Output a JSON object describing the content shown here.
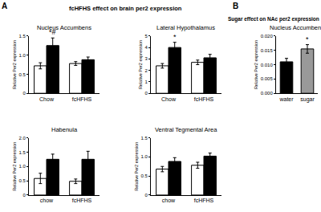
{
  "panels": [
    {
      "label": "A",
      "title": "fcHFHS effect on brain per2 expression"
    },
    {
      "label": "B",
      "title": "Sugar effect on NAc per2 expression"
    }
  ],
  "chart_data": [
    {
      "type": "bar",
      "title": "Nucleus Accumbens",
      "y_label": "Relative Per2 expression",
      "categories": [
        "Chow",
        "fcHFHS"
      ],
      "series": [
        {
          "color": "#ffffff",
          "values": [
            0.72,
            0.78
          ],
          "errors": [
            0.08,
            0.05
          ]
        },
        {
          "color": "#000000",
          "values": [
            1.25,
            0.88
          ],
          "errors": [
            0.2,
            0.07
          ]
        }
      ],
      "ylim": [
        0,
        1.5
      ],
      "yticks": [
        0,
        0.5,
        {
          "value": 1,
          "label": "1.0"
        },
        1.5
      ],
      "annotations": [
        {
          "text": "*#",
          "category": "Chow",
          "series": 1
        }
      ]
    },
    {
      "type": "bar",
      "title": "Lateral Hypothalamus",
      "y_label": "Relative Per2 expression",
      "categories": [
        "Chow",
        "fcHFHS"
      ],
      "series": [
        {
          "color": "#ffffff",
          "values": [
            2.4,
            2.7
          ],
          "errors": [
            0.2,
            0.2
          ]
        },
        {
          "color": "#000000",
          "values": [
            4.0,
            3.1
          ],
          "errors": [
            0.45,
            0.3
          ]
        }
      ],
      "ylim": [
        0,
        5
      ],
      "yticks": [
        0,
        1,
        2,
        3,
        4,
        5
      ],
      "annotations": [
        {
          "text": "*",
          "category": "Chow",
          "series": 1
        }
      ]
    },
    {
      "type": "bar",
      "title": "Habenula",
      "y_label": "Relative Per2 expression",
      "categories": [
        "chow",
        "fcHFHS"
      ],
      "series": [
        {
          "color": "#ffffff",
          "values": [
            0.58,
            0.48
          ],
          "errors": [
            0.18,
            0.08
          ]
        },
        {
          "color": "#000000",
          "values": [
            1.25,
            1.25
          ],
          "errors": [
            0.18,
            0.28
          ]
        }
      ],
      "ylim": [
        0,
        2
      ],
      "yticks": [
        0,
        0.5,
        {
          "value": 1,
          "label": "1.0"
        },
        1.5,
        {
          "value": 2,
          "label": "2.0"
        }
      ]
    },
    {
      "type": "bar",
      "title": "Ventral Tegmental Area",
      "y_label": "Relative Per2 expression",
      "categories": [
        "chow",
        "fcHFHS"
      ],
      "series": [
        {
          "color": "#ffffff",
          "values": [
            0.68,
            0.78
          ],
          "errors": [
            0.07,
            0.08
          ]
        },
        {
          "color": "#000000",
          "values": [
            0.88,
            1.02
          ],
          "errors": [
            0.1,
            0.08
          ]
        }
      ],
      "ylim": [
        0,
        1.5
      ],
      "yticks": [
        0,
        0.5,
        {
          "value": 1,
          "label": "1.0"
        },
        1.5
      ]
    },
    {
      "type": "bar",
      "title": "Nucleus Accumbens",
      "y_label": "Relative Per2 expression",
      "categories": [
        "water",
        "sugar"
      ],
      "values": [
        0.011,
        0.0155
      ],
      "errors": [
        0.0012,
        0.0015
      ],
      "colors": [
        "#000000",
        "#999999"
      ],
      "ylim": [
        0,
        0.02
      ],
      "yticks": [
        {
          "value": 0,
          "label": "0.000"
        },
        {
          "value": 0.005,
          "label": "0.005"
        },
        {
          "value": 0.01,
          "label": "0.010"
        },
        {
          "value": 0.015,
          "label": "0.015"
        },
        {
          "value": 0.02,
          "label": "0.020"
        }
      ],
      "annotations": [
        {
          "text": "*",
          "category": "sugar"
        }
      ]
    }
  ]
}
